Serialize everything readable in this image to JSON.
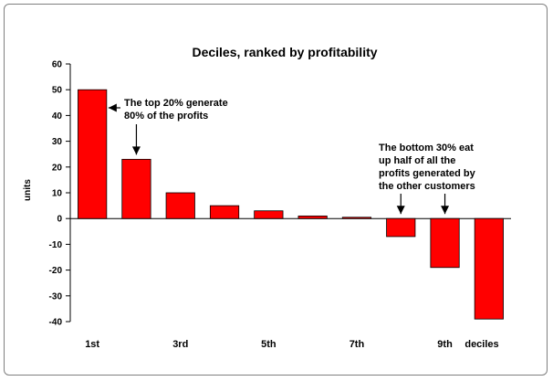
{
  "chart_data": {
    "type": "bar",
    "title": "Deciles, ranked by profitability",
    "ylabel": "units",
    "xlabel": "deciles",
    "ylim": [
      -40,
      60
    ],
    "yticks": [
      60,
      50,
      40,
      30,
      20,
      10,
      0,
      -10,
      -20,
      -30,
      -40
    ],
    "categories": [
      "1st",
      "",
      "3rd",
      "",
      "5th",
      "",
      "7th",
      "",
      "9th",
      ""
    ],
    "values": [
      50,
      23,
      10,
      5,
      3,
      1,
      0.5,
      -7,
      -19,
      -39
    ],
    "bar_color": "#ff0000",
    "grid": false,
    "annotations": [
      {
        "lines": [
          "The top 20% generate",
          "80% of the profits"
        ]
      },
      {
        "lines": [
          "The bottom 30% eat",
          "up half of all the",
          "profits generated by",
          "the other customers"
        ]
      }
    ]
  }
}
